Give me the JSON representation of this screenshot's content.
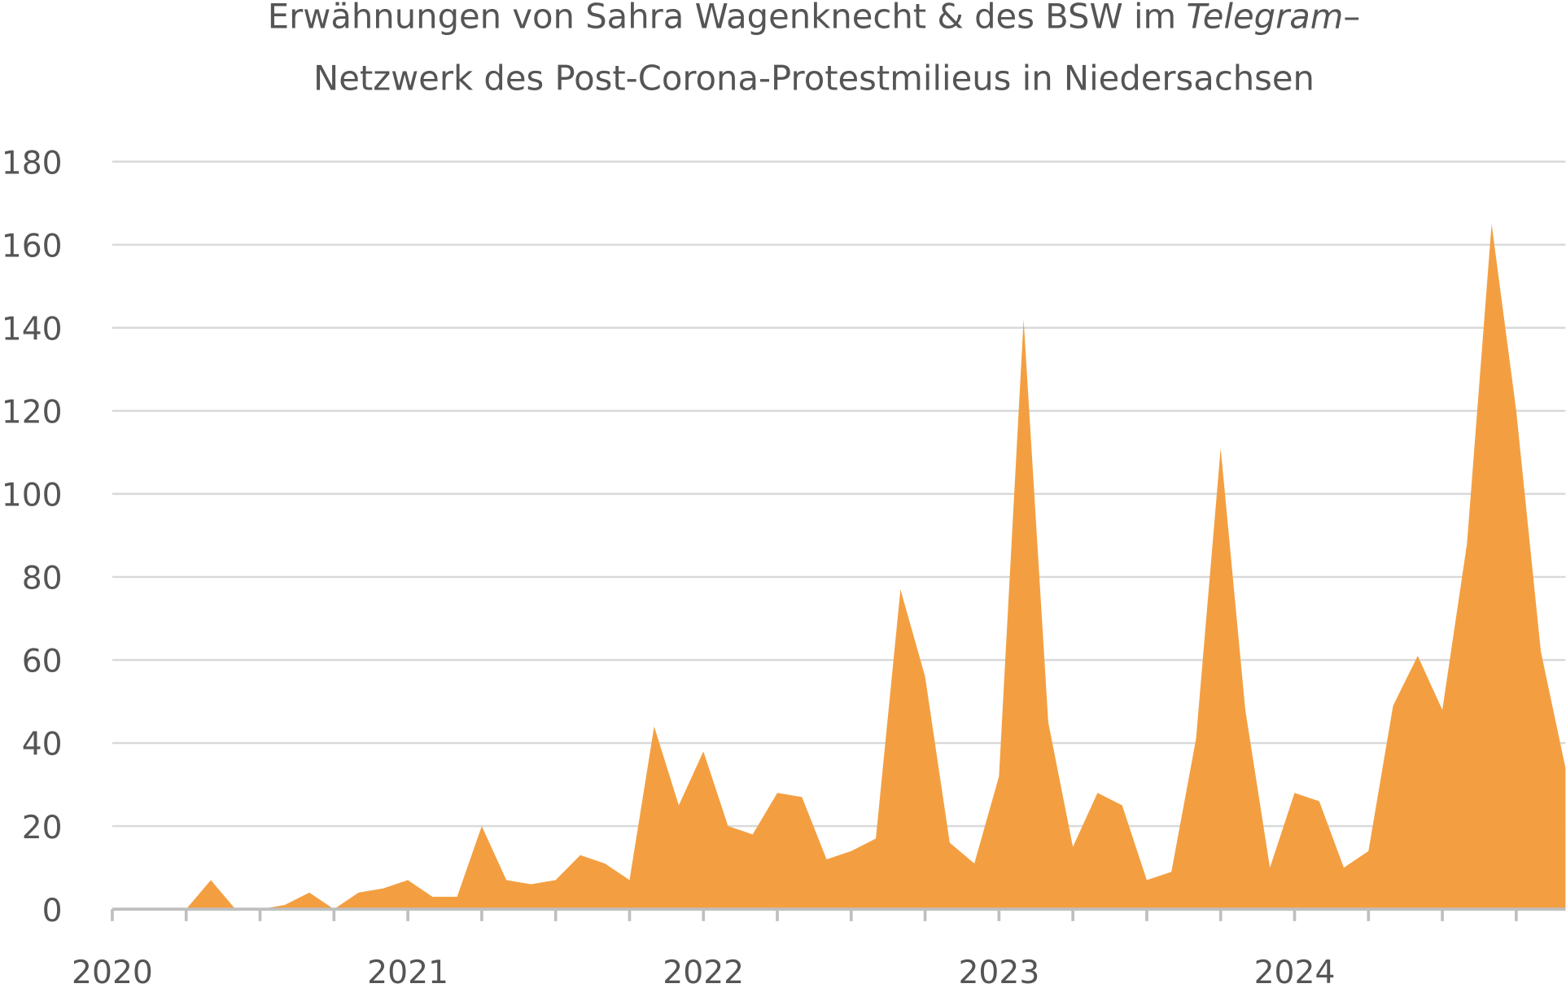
{
  "chart_data": {
    "type": "area",
    "title_parts": [
      "Erwähnungen von Sahra Wagenknecht & des BSW im",
      "Telegram",
      "–"
    ],
    "title_line2": "Netzwerk des Post-Corona-Protestmilieus in Niedersachsen",
    "categories": [
      "2020",
      null,
      null,
      null,
      null,
      null,
      null,
      null,
      null,
      null,
      null,
      null,
      "2021",
      null,
      null,
      null,
      null,
      null,
      null,
      null,
      null,
      null,
      null,
      null,
      "2022",
      null,
      null,
      null,
      null,
      null,
      null,
      null,
      null,
      null,
      null,
      null,
      "2023",
      null,
      null,
      null,
      null,
      null,
      null,
      null,
      null,
      null,
      null,
      null,
      "2024",
      null,
      null,
      null,
      null,
      null,
      null,
      null,
      null,
      null,
      null,
      null
    ],
    "values": [
      0,
      0,
      0,
      0,
      7,
      0,
      0,
      1,
      4,
      0,
      4,
      5,
      7,
      3,
      3,
      20,
      7,
      6,
      7,
      13,
      11,
      7,
      44,
      25,
      38,
      20,
      18,
      28,
      27,
      12,
      14,
      17,
      77,
      56,
      16,
      11,
      32,
      142,
      45,
      15,
      28,
      25,
      7,
      9,
      41,
      111,
      48,
      10,
      28,
      26,
      10,
      14,
      49,
      61,
      48,
      88,
      165,
      120,
      62,
      34
    ],
    "color": "#f39f41",
    "ylim": [
      0,
      180
    ],
    "yticks": [
      0,
      20,
      40,
      60,
      80,
      100,
      120,
      140,
      160,
      180
    ],
    "grid": true
  }
}
